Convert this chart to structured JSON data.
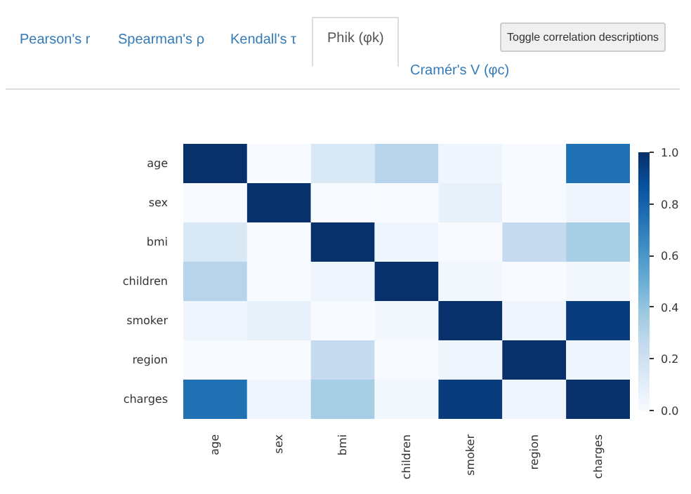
{
  "chart_data": {
    "type": "heatmap",
    "annotations": [
      "Pearson's r",
      "Spearman's ρ",
      "Kendall's τ",
      "Phik (φk)",
      "Cramér's V (φc)",
      "Toggle correlation descriptions"
    ],
    "categories": [
      "age",
      "sex",
      "bmi",
      "children",
      "smoker",
      "region",
      "charges"
    ],
    "y_categories": [
      "age",
      "sex",
      "bmi",
      "children",
      "smoker",
      "region",
      "charges"
    ],
    "cells": [
      [
        1.0,
        0.0,
        0.15,
        0.3,
        0.05,
        0.0,
        0.75
      ],
      [
        0.0,
        1.0,
        0.0,
        0.0,
        0.08,
        0.0,
        0.05
      ],
      [
        0.15,
        0.0,
        1.0,
        0.05,
        0.0,
        0.25,
        0.35
      ],
      [
        0.3,
        0.0,
        0.05,
        1.0,
        0.03,
        0.0,
        0.03
      ],
      [
        0.05,
        0.08,
        0.0,
        0.03,
        1.0,
        0.05,
        0.95
      ],
      [
        0.0,
        0.0,
        0.25,
        0.0,
        0.05,
        1.0,
        0.05
      ],
      [
        0.75,
        0.05,
        0.35,
        0.03,
        0.95,
        0.05,
        1.0
      ]
    ],
    "clim": [
      0.0,
      1.0
    ],
    "cticks": [
      {
        "value": 0,
        "label": "0.0"
      },
      0.2,
      0.4,
      0.6,
      0.8,
      {
        "value": 1,
        "label": "1.0"
      }
    ]
  }
}
